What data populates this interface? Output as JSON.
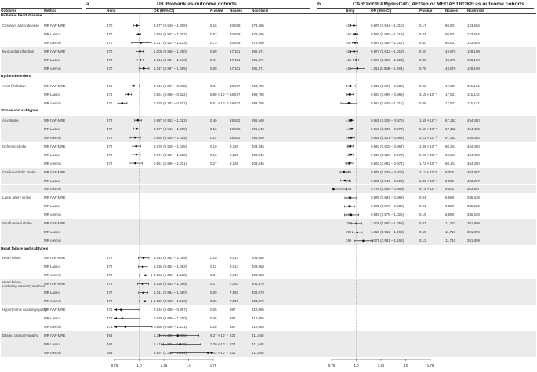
{
  "panel_a": {
    "letter": "a",
    "title": "UK Biobank as outcome cohorts"
  },
  "panel_b": {
    "letter": "b",
    "title": "CARDIoGRAMplusC4D, AFGen or MEGASTROKE as outcome cohorts"
  },
  "columns": {
    "outcome": "Outcome",
    "method": "Method",
    "nsnp": "Nsnp",
    "or": "OR (95% CI)",
    "p": "P-value",
    "ncases": "Ncases",
    "ncontrols": "Ncontrols"
  },
  "axis_ticks": [
    "0.75",
    "1.0",
    "1.25",
    "1.5",
    "1.75"
  ],
  "rows": [
    {
      "kind": "group",
      "label": "Ischemic heart disease"
    },
    {
      "outcome": "Coronary artery disease",
      "method": "MR IVW-MRE",
      "a": {
        "nsnp": "470",
        "or": "0.977 (0.946 – 1.009)",
        "p": "0.16",
        "ncases": "33,878",
        "ncontrols": "378,596",
        "est": 0.977,
        "lo": 0.946,
        "hi": 1.009
      },
      "b": {
        "nsnp": "457",
        "or": "0.976 (0.944 – 1.010)",
        "p": "0.17",
        "ncases": "60,801",
        "ncontrols": "123,504",
        "est": 0.976,
        "lo": 0.944,
        "hi": 1.01
      }
    },
    {
      "outcome": "",
      "method": "MR Lasso",
      "a": {
        "nsnp": "470",
        "or": "0.992 (0.967 – 1.017)",
        "p": "0.52",
        "ncases": "33,878",
        "ncontrols": "378,596",
        "est": 0.992,
        "lo": 0.967,
        "hi": 1.017
      },
      "b": {
        "nsnp": "455",
        "or": "0.990 (0.965 – 1.016)",
        "p": "0.44",
        "ncases": "60,801",
        "ncontrols": "123,504",
        "est": 0.99,
        "lo": 0.965,
        "hi": 1.016
      }
    },
    {
      "outcome": "",
      "method": "MR conmix",
      "a": {
        "nsnp": "470",
        "or": "1.017 (0.922 – 1.123)",
        "p": "0.73",
        "ncases": "33,878",
        "ncontrols": "378,596",
        "est": 1.017,
        "lo": 0.922,
        "hi": 1.123
      },
      "b": {
        "nsnp": "457",
        "or": "0.987 (0.958 – 1.017)",
        "p": "0.40",
        "ncases": "60,801",
        "ncontrols": "123,504",
        "est": 0.987,
        "lo": 0.958,
        "hi": 1.017
      }
    },
    {
      "outcome": "Myocardial infarction",
      "method": "MR IVW-MRE",
      "a": {
        "nsnp": "470",
        "or": "1.008 (0.968 – 1.050)",
        "p": "0.69",
        "ncases": "17,101",
        "ncontrols": "395,371",
        "est": 1.008,
        "lo": 0.968,
        "hi": 1.05
      },
      "b": {
        "nsnp": "455",
        "or": "0.977 (0.942 – 1.013)",
        "p": "0.20",
        "ncases": "43,676",
        "ncontrols": "128,199",
        "est": 0.977,
        "lo": 0.942,
        "hi": 1.013
      }
    },
    {
      "outcome": "",
      "method": "MR Lasso",
      "a": {
        "nsnp": "470",
        "or": "1.014 (0.981 – 1.048)",
        "p": "0.41",
        "ncases": "17,101",
        "ncontrols": "395,371",
        "est": 1.014,
        "lo": 0.981,
        "hi": 1.048
      },
      "b": {
        "nsnp": "455",
        "or": "0.997 (0.969 – 1.026)",
        "p": "0.85",
        "ncases": "43,676",
        "ncontrols": "128,199",
        "est": 0.997,
        "lo": 0.969,
        "hi": 1.026
      }
    },
    {
      "outcome": "",
      "method": "MR conmix",
      "a": {
        "nsnp": "470",
        "or": "1.047 (0.997 – 1.099)",
        "p": "0.08",
        "ncases": "17,101",
        "ncontrols": "395,371",
        "est": 1.047,
        "lo": 0.997,
        "hi": 1.099
      },
      "b": {
        "nsnp": "455",
        "or": "1.011 (0.938 – 1.089)",
        "p": "0.78",
        "ncases": "43,676",
        "ncontrols": "128,199",
        "est": 1.011,
        "lo": 0.938,
        "hi": 1.089
      }
    },
    {
      "kind": "group",
      "label": "Rythm disorders"
    },
    {
      "outcome": "Atrial fibrillation",
      "method": "MR IVW-MRE",
      "a": {
        "nsnp": "471",
        "or": "0.946 (0.897 – 0.998)",
        "p": "0.04",
        "ncases": "18,677",
        "ncontrols": "393,795",
        "est": 0.946,
        "lo": 0.897,
        "hi": 0.998
      },
      "b": {
        "nsnp": "446",
        "or": "0.942 (0.897 – 0.989)",
        "p": "0.02",
        "ncases": "17,931",
        "ncontrols": "115,142",
        "est": 0.942,
        "lo": 0.897,
        "hi": 0.989
      }
    },
    {
      "outcome": "",
      "method": "MR Lasso",
      "a": {
        "nsnp": "471",
        "or": "0.891 (0.860 – 0.922)",
        "p": "6.80 × 10⁻¹¹",
        "ncases": "18,677",
        "ncontrols": "393,795",
        "est": 0.891,
        "lo": 0.86,
        "hi": 0.922
      },
      "b": {
        "nsnp": "446",
        "or": "0.934 (0.899 – 0.969)",
        "p": "3.15 × 10⁻⁴",
        "ncases": "17,931",
        "ncontrols": "115,142",
        "est": 0.934,
        "lo": 0.899,
        "hi": 0.969
      }
    },
    {
      "outcome": "",
      "method": "MR conmix",
      "a": {
        "nsnp": "471",
        "or": "0.828 (0.782 – 0.877)",
        "p": "9.51 × 10⁻¹¹",
        "ncases": "18,677",
        "ncontrols": "393,795",
        "est": 0.828,
        "lo": 0.782,
        "hi": 0.877
      },
      "b": {
        "nsnp": "446",
        "or": "0.924 (0.845 – 1.011)",
        "p": "0.08",
        "ncases": "17,931",
        "ncontrols": "115,142",
        "est": 0.924,
        "lo": 0.845,
        "hi": 1.011
      }
    },
    {
      "kind": "group",
      "label": "Stroke and subtypes"
    },
    {
      "outcome": "Any stroke",
      "method": "MR IVW-MRE",
      "a": {
        "nsnp": "472",
        "or": "0.987 (0.953 – 1.023)",
        "p": "0.49",
        "ncases": "15,932",
        "ncontrols": "396,540",
        "est": 0.987,
        "lo": 0.953,
        "hi": 1.023
      },
      "b": {
        "nsnp": "441",
        "or": "0.951 (0.926 – 0.976)",
        "p": "1.59 × 10⁻⁴",
        "ncases": "67,162",
        "ncontrols": "454,450",
        "est": 0.951,
        "lo": 0.926,
        "hi": 0.976
      }
    },
    {
      "outcome": "",
      "method": "MR Lasso",
      "a": {
        "nsnp": "472",
        "or": "0.977 (0.946 – 1.009)",
        "p": "0.16",
        "ncases": "15,932",
        "ncontrols": "396,540",
        "est": 0.977,
        "lo": 0.946,
        "hi": 1.009
      },
      "b": {
        "nsnp": "441",
        "or": "0.956 (0.936 – 0.977)",
        "p": "5.68 × 10⁻⁵",
        "ncases": "67,162",
        "ncontrols": "454,450",
        "est": 0.956,
        "lo": 0.936,
        "hi": 0.977
      }
    },
    {
      "outcome": "",
      "method": "MR conmix",
      "a": {
        "nsnp": "472",
        "or": "0.959 (0.908 – 1.014)",
        "p": "0.14",
        "ncases": "15,932",
        "ncontrols": "396,540",
        "est": 0.959,
        "lo": 0.908,
        "hi": 1.014
      },
      "b": {
        "nsnp": "441",
        "or": "0.951 (0.921 – 0.982)",
        "p": "2.22 × 10⁻³",
        "ncases": "67,162",
        "ncontrols": "454,450",
        "est": 0.951,
        "lo": 0.921,
        "hi": 0.982
      }
    },
    {
      "outcome": "Ischemic stroke",
      "method": "MR IVW-MRE",
      "a": {
        "nsnp": "472",
        "or": "0.970 (0.928 – 1.015)",
        "p": "0.19",
        "ncases": "9,126",
        "ncontrols": "403,346",
        "est": 0.97,
        "lo": 0.928,
        "hi": 1.015
      },
      "b": {
        "nsnp": "437",
        "or": "0.940 (0.915 – 0.967)",
        "p": "1.08 × 10⁻⁵",
        "ncases": "60,341",
        "ncontrols": "454,450",
        "est": 0.94,
        "lo": 0.915,
        "hi": 0.967
      }
    },
    {
      "outcome": "",
      "method": "MR Lasso",
      "a": {
        "nsnp": "472",
        "or": "0.971 (0.931 – 1.012)",
        "p": "0.16",
        "ncases": "9,126",
        "ncontrols": "403,346",
        "est": 0.971,
        "lo": 0.931,
        "hi": 1.012
      },
      "b": {
        "nsnp": "437",
        "or": "0.948 (0.926 – 0.970)",
        "p": "5.28 × 10⁻⁶",
        "ncases": "60,341",
        "ncontrols": "454,450",
        "est": 0.948,
        "lo": 0.926,
        "hi": 0.97
      }
    },
    {
      "outcome": "",
      "method": "MR conmix",
      "a": {
        "nsnp": "472",
        "or": "0.961 (0.895 – 1.031)",
        "p": "0.27",
        "ncases": "9,126",
        "ncontrols": "403,346",
        "est": 0.961,
        "lo": 0.895,
        "hi": 1.031
      },
      "b": {
        "nsnp": "437",
        "or": "0.932 (0.892 – 0.974)",
        "p": "1.72 × 10⁻³",
        "ncases": "60,341",
        "ncontrols": "454,450",
        "est": 0.932,
        "lo": 0.892,
        "hi": 0.974
      }
    },
    {
      "outcome": "Cardio-embolic stroke",
      "method": "MR IVW-MRE",
      "a": null,
      "b": {
        "nsnp": "445",
        "or": "0.875 (0.828 – 0.925)",
        "p": "2.11 × 10⁻⁶",
        "ncases": "9,006",
        "ncontrols": "403,807",
        "est": 0.875,
        "lo": 0.828,
        "hi": 0.925
      }
    },
    {
      "outcome": "",
      "method": "MR Lasso",
      "a": null,
      "b": {
        "nsnp": "445",
        "or": "0.885 (0.843 – 0.929)",
        "p": "6.86 × 10⁻⁷",
        "ncases": "9,006",
        "ncontrols": "403,807",
        "est": 0.885,
        "lo": 0.843,
        "hi": 0.929
      }
    },
    {
      "outcome": "",
      "method": "MR conmix",
      "a": null,
      "b": {
        "nsnp": "445",
        "or": "0.769 (0.658 – 0.899)",
        "p": "9.79 × 10⁻⁴",
        "ncases": "9,006",
        "ncontrols": "403,807",
        "est": 0.769,
        "lo": 0.658,
        "hi": 0.899
      }
    },
    {
      "outcome": "Large artery stroke",
      "method": "MR IVW-MRE",
      "a": null,
      "b": {
        "nsnp": "446",
        "or": "0.939 (0.884 – 0.998)",
        "p": "0.04",
        "ncases": "6,688",
        "ncontrols": "345,629",
        "est": 0.939,
        "lo": 0.884,
        "hi": 0.998
      }
    },
    {
      "outcome": "",
      "method": "MR Lasso",
      "a": null,
      "b": {
        "nsnp": "446",
        "or": "0.931 (0.879 – 0.985)",
        "p": "0.01",
        "ncases": "6,688",
        "ncontrols": "345,629",
        "est": 0.931,
        "lo": 0.879,
        "hi": 0.985
      }
    },
    {
      "outcome": "",
      "method": "MR conmix",
      "a": null,
      "b": {
        "nsnp": "446",
        "or": "0.949 (0.879 – 1.025)",
        "p": "0.19",
        "ncases": "6,688",
        "ncontrols": "345,629",
        "est": 0.949,
        "lo": 0.879,
        "hi": 1.025
      }
    },
    {
      "outcome": "Small vessel stroke",
      "method": "MR IVW-MRE",
      "a": null,
      "b": {
        "nsnp": "399",
        "or": "1.001 (0.950 – 1.055)",
        "p": "0.97",
        "ncases": "11,710",
        "ncontrols": "391,899",
        "est": 1.001,
        "lo": 0.95,
        "hi": 1.055
      }
    },
    {
      "outcome": "",
      "method": "MR Lasso",
      "a": null,
      "b": {
        "nsnp": "399",
        "or": "1.010 (0.962 – 1.060)",
        "p": "0.69",
        "ncases": "11,710",
        "ncontrols": "391,899",
        "est": 1.01,
        "lo": 0.962,
        "hi": 1.06
      }
    },
    {
      "outcome": "",
      "method": "MR conmix",
      "a": null,
      "b": {
        "nsnp": "399",
        "or": "1.071 (0.981 – 1.168)",
        "p": "0.13",
        "ncases": "11,710",
        "ncontrols": "391,899",
        "est": 1.071,
        "lo": 0.981,
        "hi": 1.168
      }
    },
    {
      "kind": "group",
      "label": "Heart failure and subtypes"
    },
    {
      "outcome": "Heart failure",
      "method": "MR IVW-MRE",
      "a": {
        "nsnp": "472",
        "or": "1.044 (0.992 – 1.099)",
        "p": "0.10",
        "ncases": "8,614",
        "ncontrols": "403,858",
        "est": 1.044,
        "lo": 0.992,
        "hi": 1.099
      },
      "b": null
    },
    {
      "outcome": "",
      "method": "MR Lasso",
      "a": {
        "nsnp": "472",
        "or": "1.036 (0.992 – 1.083)",
        "p": "0.11",
        "ncases": "8,614",
        "ncontrols": "403,858",
        "est": 1.036,
        "lo": 0.992,
        "hi": 1.083
      },
      "b": null
    },
    {
      "outcome": "",
      "method": "MR conmix",
      "a": {
        "nsnp": "472",
        "or": "1.063 (1.002 – 1.128)",
        "p": "0.04",
        "ncases": "8,614",
        "ncontrols": "403,858",
        "est": 1.063,
        "lo": 1.002,
        "hi": 1.128
      },
      "b": null
    },
    {
      "outcome": "Heart failure,",
      "outcome2": "excluding cardiomyopathies",
      "method": "MR IVW-MRE",
      "a": {
        "nsnp": "472",
        "or": "1.036 (0.983 – 1.096)",
        "p": "0.17",
        "ncases": "7,593",
        "ncontrols": "404,879",
        "est": 1.036,
        "lo": 0.983,
        "hi": 1.096
      },
      "b": null
    },
    {
      "outcome": "",
      "method": "MR Lasso",
      "a": {
        "nsnp": "472",
        "or": "1.041 (0.994 – 1.090)",
        "p": "0.09",
        "ncases": "7,593",
        "ncontrols": "404,879",
        "est": 1.041,
        "lo": 0.994,
        "hi": 1.09
      },
      "b": null
    },
    {
      "outcome": "",
      "method": "MR conmix",
      "a": {
        "nsnp": "472",
        "or": "1.059 (0.998 – 1.126)",
        "p": "0.06",
        "ncases": "7,593",
        "ncontrols": "404,879",
        "est": 1.059,
        "lo": 0.998,
        "hi": 1.126
      },
      "b": null
    },
    {
      "outcome": "Hypertrophic cardiomyopathy",
      "method": "MR IVW-MRE",
      "a": {
        "nsnp": "471",
        "or": "0.816 (0.668 – 0.997)",
        "p": "0.05",
        "ncases": "387",
        "ncontrols": "412,085",
        "est": 0.816,
        "lo": 0.668,
        "hi": 0.997
      },
      "b": null
    },
    {
      "outcome": "",
      "method": "MR Lasso",
      "a": {
        "nsnp": "471",
        "or": "0.829 (0.680 – 1.010)",
        "p": "0.06",
        "ncases": "387",
        "ncontrols": "412,085",
        "est": 0.829,
        "lo": 0.68,
        "hi": 1.01
      },
      "b": null
    },
    {
      "outcome": "",
      "method": "MR conmix",
      "a": {
        "nsnp": "471",
        "or": "0.860 (0.655 – 1.131)",
        "p": "0.28",
        "ncases": "387",
        "ncontrols": "412,085",
        "est": 0.86,
        "lo": 0.655,
        "hi": 1.131
      },
      "b": null
    },
    {
      "outcome": "Dilated cardiomyopathy",
      "method": "MR IVW-MRE",
      "a": {
        "nsnp": "468",
        "or": "1.391 (1.205 – 1.605)",
        "p": "6.27 × 10⁻⁶",
        "ncases": "824",
        "ncontrols": "411,648",
        "est": 1.391,
        "lo": 1.205,
        "hi": 1.605
      },
      "b": null
    },
    {
      "outcome": "",
      "method": "MR Lasso",
      "a": {
        "nsnp": "468",
        "or": "1.411 (1.228 – 1.622)",
        "p": "1.20 × 10⁻⁶",
        "ncases": "824",
        "ncontrols": "411,648",
        "est": 1.411,
        "lo": 1.228,
        "hi": 1.622
      },
      "b": null
    },
    {
      "outcome": "",
      "method": "MR conmix",
      "a": {
        "nsnp": "468",
        "or": "1.697 (1.318 – 2.184)",
        "p": "4.03 × 10⁻⁵",
        "ncases": "824",
        "ncontrols": "411,648",
        "est": 1.697,
        "lo": 1.318,
        "hi": 2.184
      },
      "b": null
    }
  ],
  "colors": {
    "marker": "#111111",
    "shade": "#ebebeb",
    "rule": "#444444"
  }
}
